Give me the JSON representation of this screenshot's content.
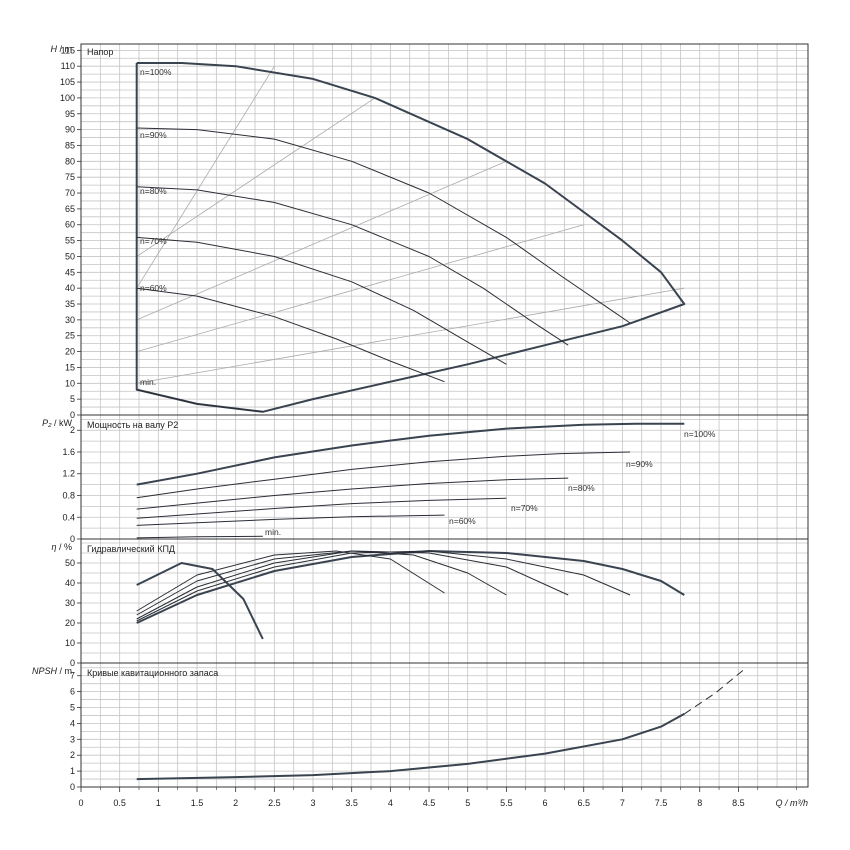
{
  "chart_data": {
    "type": "line",
    "x_axis": {
      "ticks": [
        "0",
        "0.5",
        "1",
        "1.5",
        "2",
        "2.5",
        "3",
        "3.5",
        "4",
        "4.5",
        "5",
        "5.5",
        "6",
        "6.5",
        "7",
        "7.5",
        "8",
        "8.5"
      ],
      "label": "Q / m³/h",
      "range": [
        0,
        9.4
      ]
    },
    "panels": [
      {
        "id": "head",
        "title": "Напор",
        "ylabel_italic": "H",
        "ylabel_unit": " / m",
        "ylim": [
          0,
          117
        ],
        "yticks": [
          "0",
          "5",
          "10",
          "15",
          "20",
          "25",
          "30",
          "35",
          "40",
          "45",
          "50",
          "55",
          "60",
          "65",
          "70",
          "75",
          "80",
          "85",
          "90",
          "95",
          "100",
          "105",
          "110",
          "115"
        ],
        "speed_labels": [
          "n=100%",
          "n=90%",
          "n=80%",
          "n=70%",
          "n=60%",
          "min."
        ],
        "envelope": [
          [
            0.72,
            111
          ],
          [
            1.3,
            111
          ],
          [
            2,
            110
          ],
          [
            3,
            106
          ],
          [
            3.8,
            100
          ],
          [
            5,
            87
          ],
          [
            6,
            73
          ],
          [
            7,
            55
          ],
          [
            7.5,
            45
          ],
          [
            7.8,
            35
          ],
          [
            7,
            28
          ],
          [
            6,
            22
          ],
          [
            5,
            16
          ],
          [
            4,
            10.5
          ],
          [
            3,
            5
          ],
          [
            2.35,
            1
          ],
          [
            1.5,
            3.5
          ],
          [
            0.72,
            8
          ],
          [
            0.72,
            111
          ]
        ],
        "series": [
          {
            "label_index": 1,
            "points": [
              [
                0.72,
                90.5
              ],
              [
                1.5,
                90
              ],
              [
                2.5,
                87
              ],
              [
                3.5,
                80
              ],
              [
                4.5,
                70
              ],
              [
                5.5,
                56
              ],
              [
                6.2,
                44
              ],
              [
                6.8,
                34
              ],
              [
                7.1,
                29
              ]
            ]
          },
          {
            "label_index": 2,
            "points": [
              [
                0.72,
                72
              ],
              [
                1.5,
                71
              ],
              [
                2.5,
                67
              ],
              [
                3.5,
                60
              ],
              [
                4.5,
                50
              ],
              [
                5.2,
                40
              ],
              [
                5.8,
                30
              ],
              [
                6.3,
                22
              ]
            ]
          },
          {
            "label_index": 3,
            "points": [
              [
                0.72,
                56
              ],
              [
                1.5,
                54.5
              ],
              [
                2.5,
                50
              ],
              [
                3.5,
                42
              ],
              [
                4.3,
                33
              ],
              [
                5,
                23
              ],
              [
                5.5,
                16
              ]
            ]
          },
          {
            "label_index": 4,
            "points": [
              [
                0.72,
                40
              ],
              [
                1.5,
                37.5
              ],
              [
                2.5,
                31
              ],
              [
                3.3,
                24
              ],
              [
                4,
                17
              ],
              [
                4.7,
                10.5
              ]
            ]
          },
          {
            "label_index": 5,
            "points": [
              [
                0.72,
                8
              ],
              [
                1.5,
                3.5
              ],
              [
                2.35,
                1
              ]
            ]
          }
        ],
        "efficiency_lines": [
          [
            [
              0.72,
              50
            ],
            [
              3.8,
              100
            ]
          ],
          [
            [
              0.72,
              40
            ],
            [
              2.5,
              110
            ]
          ],
          [
            [
              0.72,
              30
            ],
            [
              5.5,
              80
            ]
          ],
          [
            [
              0.72,
              20
            ],
            [
              6.5,
              60
            ]
          ],
          [
            [
              0.72,
              10
            ],
            [
              7.8,
              40
            ]
          ]
        ]
      },
      {
        "id": "power",
        "title": "Мощность на валу P2",
        "ylabel_italic": "P₂",
        "ylabel_unit": " / kW",
        "ylim": [
          0,
          2.28
        ],
        "yticks": [
          "0",
          "0.4",
          "0.8",
          "1.2",
          "1.6",
          "2"
        ],
        "speed_labels": [
          "n=100%",
          "n=90%",
          "n=80%",
          "n=70%",
          "n=60%",
          "min."
        ],
        "series": [
          {
            "label_index": 0,
            "bold": true,
            "points": [
              [
                0.72,
                1.0
              ],
              [
                1.5,
                1.2
              ],
              [
                2.5,
                1.5
              ],
              [
                3.5,
                1.72
              ],
              [
                4.5,
                1.9
              ],
              [
                5.5,
                2.03
              ],
              [
                6.5,
                2.1
              ],
              [
                7.2,
                2.12
              ],
              [
                7.8,
                2.12
              ]
            ]
          },
          {
            "label_index": 1,
            "points": [
              [
                0.72,
                0.76
              ],
              [
                1.5,
                0.92
              ],
              [
                2.5,
                1.1
              ],
              [
                3.5,
                1.28
              ],
              [
                4.5,
                1.42
              ],
              [
                5.5,
                1.52
              ],
              [
                6.2,
                1.57
              ],
              [
                7.1,
                1.6
              ]
            ]
          },
          {
            "label_index": 2,
            "points": [
              [
                0.72,
                0.55
              ],
              [
                1.5,
                0.66
              ],
              [
                2.5,
                0.8
              ],
              [
                3.5,
                0.92
              ],
              [
                4.5,
                1.02
              ],
              [
                5.5,
                1.09
              ],
              [
                6.3,
                1.12
              ]
            ]
          },
          {
            "label_index": 3,
            "points": [
              [
                0.72,
                0.38
              ],
              [
                1.5,
                0.46
              ],
              [
                2.5,
                0.56
              ],
              [
                3.5,
                0.65
              ],
              [
                4.5,
                0.71
              ],
              [
                5.5,
                0.75
              ]
            ]
          },
          {
            "label_index": 4,
            "points": [
              [
                0.72,
                0.25
              ],
              [
                1.5,
                0.3
              ],
              [
                2.5,
                0.36
              ],
              [
                3.5,
                0.41
              ],
              [
                4.7,
                0.44
              ]
            ]
          },
          {
            "label_index": 5,
            "points": [
              [
                0.72,
                0.02
              ],
              [
                1.5,
                0.04
              ],
              [
                2.35,
                0.05
              ]
            ]
          }
        ]
      },
      {
        "id": "efficiency",
        "title": "Гидравлический КПД",
        "ylabel_italic": "η",
        "ylabel_unit": " / %",
        "ylim": [
          0,
          62
        ],
        "yticks": [
          "0",
          "10",
          "20",
          "30",
          "40",
          "50"
        ],
        "series": [
          {
            "bold": true,
            "points": [
              [
                0.72,
                20
              ],
              [
                1.5,
                34
              ],
              [
                2.5,
                46
              ],
              [
                3.5,
                53
              ],
              [
                4.5,
                56
              ],
              [
                5.5,
                55
              ],
              [
                6.5,
                51
              ],
              [
                7,
                47
              ],
              [
                7.5,
                41
              ],
              [
                7.8,
                34
              ]
            ]
          },
          {
            "points": [
              [
                0.72,
                21
              ],
              [
                1.5,
                36
              ],
              [
                2.5,
                48
              ],
              [
                3.5,
                55
              ],
              [
                4.5,
                56
              ],
              [
                5.5,
                52
              ],
              [
                6.5,
                44
              ],
              [
                7.1,
                34
              ]
            ]
          },
          {
            "points": [
              [
                0.72,
                22
              ],
              [
                1.5,
                38
              ],
              [
                2.5,
                50
              ],
              [
                3.5,
                56
              ],
              [
                4.5,
                55
              ],
              [
                5.5,
                48
              ],
              [
                6.3,
                34
              ]
            ]
          },
          {
            "points": [
              [
                0.72,
                24
              ],
              [
                1.5,
                41
              ],
              [
                2.5,
                52
              ],
              [
                3.5,
                56
              ],
              [
                4.3,
                54
              ],
              [
                5,
                45
              ],
              [
                5.5,
                34
              ]
            ]
          },
          {
            "points": [
              [
                0.72,
                26
              ],
              [
                1.5,
                44
              ],
              [
                2.5,
                54
              ],
              [
                3.3,
                56
              ],
              [
                4,
                52
              ],
              [
                4.7,
                35
              ]
            ]
          },
          {
            "bold": true,
            "points": [
              [
                0.72,
                39
              ],
              [
                1.3,
                50
              ],
              [
                1.7,
                47
              ],
              [
                2.1,
                32
              ],
              [
                2.35,
                12
              ]
            ]
          }
        ]
      },
      {
        "id": "npsh",
        "title": "Кривые кавитационного запаса",
        "ylabel_italic": "NPSH",
        "ylabel_unit": " / m",
        "ylim": [
          0,
          7.8
        ],
        "yticks": [
          "0",
          "1",
          "2",
          "3",
          "4",
          "5",
          "6",
          "7"
        ],
        "series": [
          {
            "bold": true,
            "points": [
              [
                0.72,
                0.5
              ],
              [
                2,
                0.62
              ],
              [
                3,
                0.75
              ],
              [
                4,
                1.0
              ],
              [
                5,
                1.45
              ],
              [
                6,
                2.1
              ],
              [
                7,
                3.0
              ],
              [
                7.5,
                3.8
              ],
              [
                7.8,
                4.6
              ]
            ]
          },
          {
            "dashed": true,
            "points": [
              [
                7.8,
                4.6
              ],
              [
                8.2,
                5.9
              ],
              [
                8.6,
                7.5
              ]
            ]
          }
        ]
      }
    ]
  }
}
